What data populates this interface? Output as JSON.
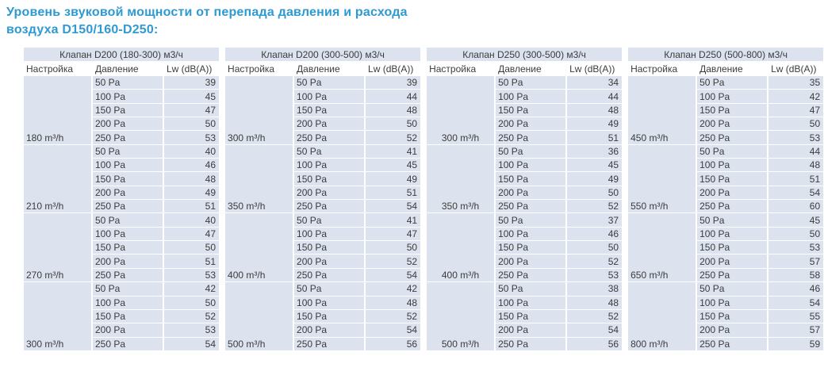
{
  "title": {
    "line1": "Уровень звуковой мощности от перепада давления и расхода",
    "line2": "воздуха D150/160-D250:"
  },
  "colors": {
    "title_accent": "#2e9ad3",
    "cell_fill": "#dce2ee"
  },
  "columns": {
    "setting": "Настройка",
    "pressure": "Давление",
    "lw": "Lw (dB(A))"
  },
  "tables": [
    {
      "header": "Клапан D200 (180-300) м3/ч",
      "setting_align": "left",
      "groups": [
        {
          "setting": "180 m³/h",
          "rows": [
            [
              "50 Pa",
              39
            ],
            [
              "100 Pa",
              45
            ],
            [
              "150 Pa",
              47
            ],
            [
              "200 Pa",
              50
            ],
            [
              "250 Pa",
              53
            ]
          ]
        },
        {
          "setting": "210 m³/h",
          "rows": [
            [
              "50 Pa",
              40
            ],
            [
              "100 Pa",
              46
            ],
            [
              "150 Pa",
              48
            ],
            [
              "200 Pa",
              49
            ],
            [
              "250 Pa",
              51
            ]
          ]
        },
        {
          "setting": "270 m³/h",
          "rows": [
            [
              "50 Pa",
              40
            ],
            [
              "100 Pa",
              47
            ],
            [
              "150 Pa",
              50
            ],
            [
              "200 Pa",
              51
            ],
            [
              "250 Pa",
              53
            ]
          ]
        },
        {
          "setting": "300 m³/h",
          "rows": [
            [
              "50 Pa",
              42
            ],
            [
              "100 Pa",
              50
            ],
            [
              "150 Pa",
              52
            ],
            [
              "200 Pa",
              53
            ],
            [
              "250 Pa",
              54
            ]
          ]
        }
      ]
    },
    {
      "header": "Клапан D200 (300-500) м3/ч",
      "setting_align": "left",
      "groups": [
        {
          "setting": "300 m³/h",
          "rows": [
            [
              "50 Pa",
              39
            ],
            [
              "100 Pa",
              44
            ],
            [
              "150 Pa",
              48
            ],
            [
              "200 Pa",
              50
            ],
            [
              "250 Pa",
              52
            ]
          ]
        },
        {
          "setting": "350 m³/h",
          "rows": [
            [
              "50 Pa",
              41
            ],
            [
              "100 Pa",
              45
            ],
            [
              "150 Pa",
              49
            ],
            [
              "200 Pa",
              51
            ],
            [
              "250 Pa",
              54
            ]
          ]
        },
        {
          "setting": "400 m³/h",
          "rows": [
            [
              "50 Pa",
              41
            ],
            [
              "100 Pa",
              47
            ],
            [
              "150 Pa",
              50
            ],
            [
              "200 Pa",
              52
            ],
            [
              "250 Pa",
              54
            ]
          ]
        },
        {
          "setting": "500 m³/h",
          "rows": [
            [
              "50 Pa",
              42
            ],
            [
              "100 Pa",
              48
            ],
            [
              "150 Pa",
              52
            ],
            [
              "200 Pa",
              54
            ],
            [
              "250 Pa",
              56
            ]
          ]
        }
      ]
    },
    {
      "header": "Клапан D250 (300-500) м3/ч",
      "setting_align": "center",
      "groups": [
        {
          "setting": "300 m³/h",
          "rows": [
            [
              "50 Pa",
              34
            ],
            [
              "100 Pa",
              44
            ],
            [
              "150 Pa",
              48
            ],
            [
              "200 Pa",
              49
            ],
            [
              "250 Pa",
              51
            ]
          ]
        },
        {
          "setting": "350 m³/h",
          "rows": [
            [
              "50 Pa",
              36
            ],
            [
              "100 Pa",
              45
            ],
            [
              "150 Pa",
              49
            ],
            [
              "200 Pa",
              50
            ],
            [
              "250 Pa",
              52
            ]
          ]
        },
        {
          "setting": "400 m³/h",
          "rows": [
            [
              "50 Pa",
              37
            ],
            [
              "100 Pa",
              46
            ],
            [
              "150 Pa",
              50
            ],
            [
              "200 Pa",
              52
            ],
            [
              "250 Pa",
              53
            ]
          ]
        },
        {
          "setting": "500 m³/h",
          "rows": [
            [
              "50 Pa",
              38
            ],
            [
              "100 Pa",
              48
            ],
            [
              "150 Pa",
              52
            ],
            [
              "200 Pa",
              54
            ],
            [
              "250 Pa",
              56
            ]
          ]
        }
      ]
    },
    {
      "header": "Клапан D250 (500-800) м3/ч",
      "setting_align": "left",
      "groups": [
        {
          "setting": "450 m³/h",
          "rows": [
            [
              "50 Pa",
              35
            ],
            [
              "100 Pa",
              42
            ],
            [
              "150 Pa",
              47
            ],
            [
              "200 Pa",
              50
            ],
            [
              "250 Pa",
              53
            ]
          ]
        },
        {
          "setting": "550 m³/h",
          "rows": [
            [
              "50 Pa",
              44
            ],
            [
              "100 Pa",
              48
            ],
            [
              "150 Pa",
              51
            ],
            [
              "200 Pa",
              54
            ],
            [
              "250 Pa",
              60
            ]
          ]
        },
        {
          "setting": "650 m³/h",
          "rows": [
            [
              "50 Pa",
              45
            ],
            [
              "100 Pa",
              50
            ],
            [
              "150 Pa",
              53
            ],
            [
              "200 Pa",
              57
            ],
            [
              "250 Pa",
              58
            ]
          ]
        },
        {
          "setting": "800 m³/h",
          "rows": [
            [
              "50 Pa",
              46
            ],
            [
              "100 Pa",
              54
            ],
            [
              "150 Pa",
              55
            ],
            [
              "200 Pa",
              57
            ],
            [
              "250 Pa",
              59
            ]
          ]
        }
      ]
    }
  ]
}
